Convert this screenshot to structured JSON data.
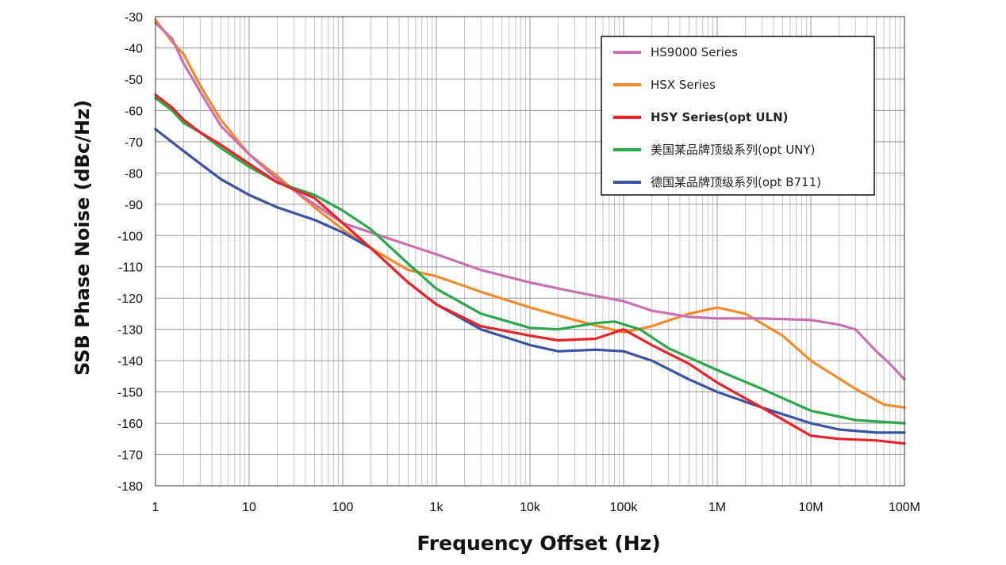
{
  "chart_data": {
    "type": "line",
    "title": "",
    "xlabel": "Frequency Offset (Hz)",
    "ylabel": "SSB Phase Noise (dBc/Hz)",
    "x_scale": "log",
    "xlim": [
      1,
      100000000
    ],
    "ylim": [
      -180,
      -30
    ],
    "grid": true,
    "legend_position": "top-right",
    "x_ticks": [
      {
        "value": 1,
        "label": "1"
      },
      {
        "value": 10,
        "label": "10"
      },
      {
        "value": 100,
        "label": "100"
      },
      {
        "value": 1000,
        "label": "1k"
      },
      {
        "value": 10000,
        "label": "10k"
      },
      {
        "value": 100000,
        "label": "100k"
      },
      {
        "value": 1000000,
        "label": "1M"
      },
      {
        "value": 10000000,
        "label": "10M"
      },
      {
        "value": 100000000,
        "label": "100M"
      }
    ],
    "y_ticks": [
      -30,
      -40,
      -50,
      -60,
      -70,
      -80,
      -90,
      -100,
      -110,
      -120,
      -130,
      -140,
      -150,
      -160,
      -170,
      -180
    ],
    "series": [
      {
        "name": "HS9000 Series",
        "color": "#c96fb3",
        "bold": false,
        "points": [
          [
            1,
            -32
          ],
          [
            1.5,
            -37
          ],
          [
            2,
            -45
          ],
          [
            3,
            -54
          ],
          [
            5,
            -65
          ],
          [
            10,
            -74
          ],
          [
            20,
            -82
          ],
          [
            50,
            -90
          ],
          [
            100,
            -96
          ],
          [
            200,
            -99
          ],
          [
            500,
            -103
          ],
          [
            1000,
            -106
          ],
          [
            3000,
            -111
          ],
          [
            10000,
            -115
          ],
          [
            30000,
            -118
          ],
          [
            100000,
            -121
          ],
          [
            200000,
            -124
          ],
          [
            500000,
            -126
          ],
          [
            1000000,
            -126.5
          ],
          [
            3000000,
            -126.5
          ],
          [
            10000000,
            -127
          ],
          [
            20000000,
            -128.5
          ],
          [
            30000000,
            -130
          ],
          [
            50000000,
            -137
          ],
          [
            70000000,
            -141
          ],
          [
            100000000,
            -146
          ]
        ]
      },
      {
        "name": "HSX Series",
        "color": "#f28a2b",
        "bold": false,
        "points": [
          [
            1,
            -31
          ],
          [
            1.5,
            -38
          ],
          [
            2,
            -42
          ],
          [
            3,
            -52
          ],
          [
            5,
            -63
          ],
          [
            10,
            -74
          ],
          [
            20,
            -81
          ],
          [
            50,
            -91
          ],
          [
            100,
            -98
          ],
          [
            200,
            -104
          ],
          [
            500,
            -111
          ],
          [
            1000,
            -113
          ],
          [
            3000,
            -118
          ],
          [
            10000,
            -123
          ],
          [
            30000,
            -127
          ],
          [
            100000,
            -131
          ],
          [
            200000,
            -129
          ],
          [
            500000,
            -125
          ],
          [
            1000000,
            -123
          ],
          [
            2000000,
            -125
          ],
          [
            5000000,
            -132
          ],
          [
            10000000,
            -140
          ],
          [
            30000000,
            -149
          ],
          [
            60000000,
            -154
          ],
          [
            100000000,
            -155
          ]
        ]
      },
      {
        "name": "HSY Series(opt ULN)",
        "color": "#e8242a",
        "bold": true,
        "points": [
          [
            1,
            -55
          ],
          [
            1.5,
            -59
          ],
          [
            2,
            -63
          ],
          [
            3,
            -67
          ],
          [
            5,
            -71
          ],
          [
            10,
            -77
          ],
          [
            20,
            -83
          ],
          [
            50,
            -88
          ],
          [
            100,
            -96
          ],
          [
            200,
            -104
          ],
          [
            500,
            -115
          ],
          [
            1000,
            -122
          ],
          [
            3000,
            -129
          ],
          [
            10000,
            -132
          ],
          [
            20000,
            -133.5
          ],
          [
            50000,
            -133
          ],
          [
            100000,
            -130
          ],
          [
            200000,
            -135
          ],
          [
            500000,
            -141
          ],
          [
            1000000,
            -147
          ],
          [
            3000000,
            -155
          ],
          [
            10000000,
            -164
          ],
          [
            20000000,
            -165
          ],
          [
            50000000,
            -165.5
          ],
          [
            100000000,
            -166.5
          ]
        ]
      },
      {
        "name": "美国某品牌顶级系列(opt UNY)",
        "color": "#2aa84a",
        "bold": false,
        "points": [
          [
            1,
            -56
          ],
          [
            1.5,
            -60
          ],
          [
            2,
            -64
          ],
          [
            3,
            -67
          ],
          [
            5,
            -72
          ],
          [
            10,
            -78
          ],
          [
            20,
            -83
          ],
          [
            50,
            -87
          ],
          [
            100,
            -92
          ],
          [
            200,
            -98
          ],
          [
            500,
            -109
          ],
          [
            1000,
            -117
          ],
          [
            3000,
            -125
          ],
          [
            10000,
            -129.5
          ],
          [
            20000,
            -130
          ],
          [
            50000,
            -128
          ],
          [
            80000,
            -127.5
          ],
          [
            150000,
            -130
          ],
          [
            300000,
            -136
          ],
          [
            1000000,
            -143
          ],
          [
            3000000,
            -149
          ],
          [
            10000000,
            -156
          ],
          [
            30000000,
            -159
          ],
          [
            100000000,
            -160
          ]
        ]
      },
      {
        "name": "德国某品牌顶级系列(opt B711)",
        "color": "#3a53a4",
        "bold": false,
        "points": [
          [
            1,
            -66
          ],
          [
            2,
            -73
          ],
          [
            3,
            -77
          ],
          [
            5,
            -82
          ],
          [
            10,
            -87
          ],
          [
            20,
            -91
          ],
          [
            50,
            -95
          ],
          [
            100,
            -99
          ],
          [
            200,
            -104
          ],
          [
            500,
            -115
          ],
          [
            1000,
            -122
          ],
          [
            3000,
            -130
          ],
          [
            10000,
            -135
          ],
          [
            20000,
            -137
          ],
          [
            50000,
            -136.5
          ],
          [
            100000,
            -137
          ],
          [
            200000,
            -140
          ],
          [
            500000,
            -146
          ],
          [
            1000000,
            -150
          ],
          [
            3000000,
            -155
          ],
          [
            10000000,
            -160
          ],
          [
            20000000,
            -162
          ],
          [
            50000000,
            -163
          ],
          [
            100000000,
            -163
          ]
        ]
      }
    ]
  }
}
